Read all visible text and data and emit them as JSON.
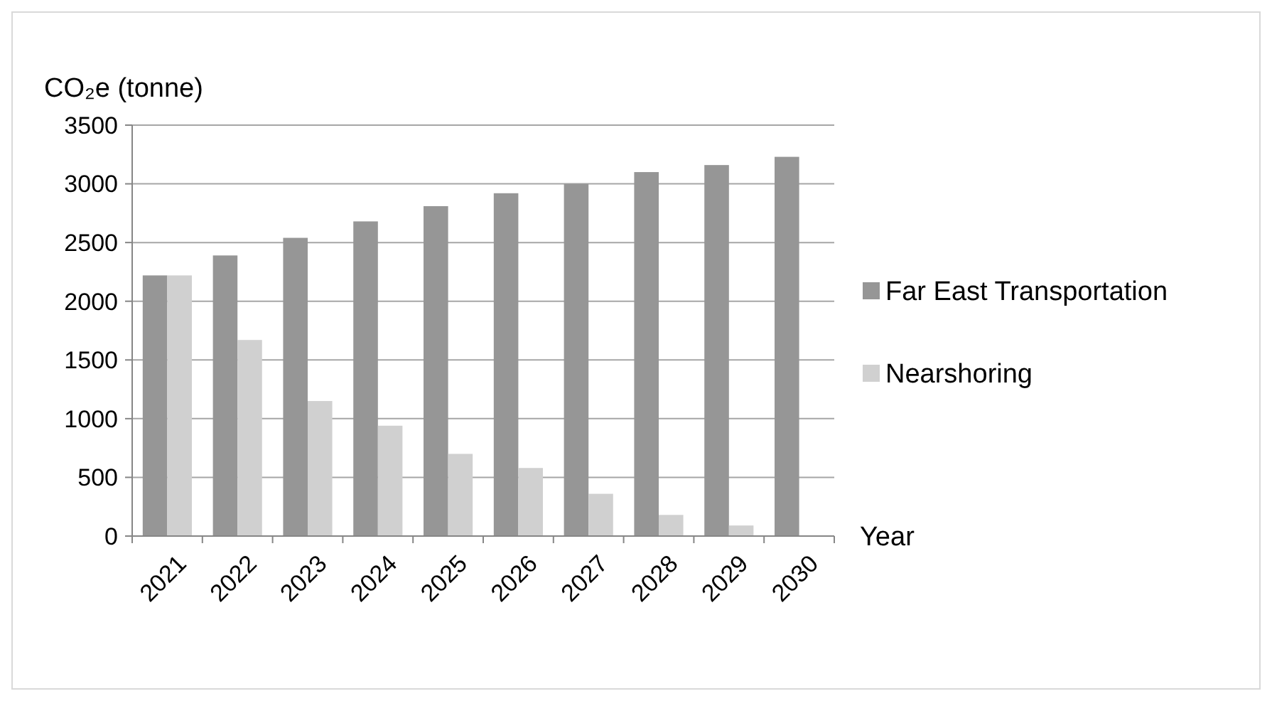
{
  "chart_data": {
    "type": "bar",
    "ylabel": "CO₂e (tonne)",
    "xlabel": "Year",
    "categories": [
      "2021",
      "2022",
      "2023",
      "2024",
      "2025",
      "2026",
      "2027",
      "2028",
      "2029",
      "2030"
    ],
    "series": [
      {
        "name": "Far East Transportation",
        "color": "#969696",
        "values": [
          2220,
          2390,
          2540,
          2680,
          2810,
          2920,
          3000,
          3100,
          3160,
          3230
        ]
      },
      {
        "name": "Nearshoring",
        "color": "#d0d0d0",
        "values": [
          2220,
          1670,
          1150,
          940,
          700,
          580,
          360,
          180,
          90,
          0
        ]
      }
    ],
    "ylim": [
      0,
      3500
    ],
    "yticks": [
      0,
      500,
      1000,
      1500,
      2000,
      2500,
      3000,
      3500
    ],
    "grid": "y",
    "legend": "right"
  }
}
